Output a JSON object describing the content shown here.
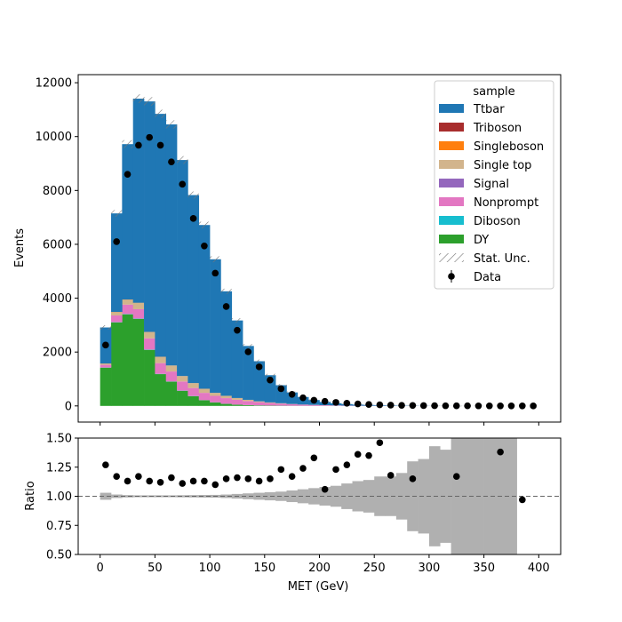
{
  "chart_data": [
    {
      "type": "bar",
      "panel": "main",
      "stacked": true,
      "xlabel": "",
      "ylabel": "Events",
      "xlim": [
        -20,
        420
      ],
      "ylim": [
        -600,
        12300
      ],
      "yticks": [
        0,
        2000,
        4000,
        6000,
        8000,
        10000,
        12000
      ],
      "bin_edges": [
        0,
        10,
        20,
        30,
        40,
        50,
        60,
        70,
        80,
        90,
        100,
        110,
        120,
        130,
        140,
        150,
        160,
        170,
        180,
        190,
        200,
        210,
        220,
        230,
        240,
        250,
        260,
        270,
        280,
        290,
        300,
        310,
        320,
        330,
        340,
        350,
        360,
        370,
        380,
        390,
        400
      ],
      "legend_title": "sample",
      "legend_position": "top-right",
      "series": [
        {
          "name": "DY",
          "color": "#2ca02c",
          "values": [
            1420,
            3100,
            3400,
            3230,
            2080,
            1180,
            900,
            560,
            360,
            210,
            130,
            75,
            45,
            28,
            18,
            11,
            7,
            5,
            3,
            2,
            1,
            1,
            0,
            0,
            0,
            0,
            0,
            0,
            0,
            0,
            0,
            0,
            0,
            0,
            0,
            0,
            0,
            0,
            0,
            0
          ]
        },
        {
          "name": "Diboson",
          "color": "#17becf",
          "values": [
            5,
            8,
            10,
            11,
            10,
            9,
            8,
            7,
            6,
            5,
            4,
            4,
            3,
            3,
            2,
            2,
            2,
            1,
            1,
            1,
            1,
            1,
            1,
            0,
            0,
            0,
            0,
            0,
            0,
            0,
            0,
            0,
            0,
            0,
            0,
            0,
            0,
            0,
            0,
            0
          ]
        },
        {
          "name": "Nonprompt",
          "color": "#e377c2",
          "values": [
            100,
            250,
            350,
            350,
            420,
            400,
            370,
            340,
            300,
            270,
            240,
            210,
            180,
            150,
            120,
            95,
            75,
            55,
            40,
            30,
            22,
            15,
            10,
            7,
            5,
            3,
            2,
            2,
            1,
            1,
            0,
            0,
            0,
            0,
            0,
            0,
            0,
            0,
            0,
            0
          ]
        },
        {
          "name": "Signal",
          "color": "#9467bd",
          "values": [
            0,
            0,
            0,
            0,
            0,
            0,
            0,
            0,
            0,
            0,
            0,
            0,
            0,
            0,
            0,
            0,
            0,
            0,
            0,
            0,
            0,
            0,
            0,
            0,
            0,
            0,
            0,
            0,
            0,
            0,
            0,
            0,
            0,
            0,
            0,
            0,
            0,
            0,
            0,
            0
          ]
        },
        {
          "name": "Single top",
          "color": "#d2b48c",
          "values": [
            40,
            120,
            180,
            230,
            230,
            230,
            220,
            200,
            180,
            150,
            110,
            85,
            65,
            45,
            30,
            22,
            15,
            10,
            7,
            5,
            3,
            2,
            1,
            1,
            0,
            0,
            0,
            0,
            0,
            0,
            0,
            0,
            0,
            0,
            0,
            0,
            0,
            0,
            0,
            0
          ]
        },
        {
          "name": "Singleboson",
          "color": "#ff7f0e",
          "values": [
            8,
            10,
            10,
            8,
            6,
            5,
            4,
            3,
            2,
            2,
            1,
            1,
            0,
            0,
            0,
            0,
            0,
            0,
            0,
            0,
            0,
            0,
            0,
            0,
            0,
            0,
            0,
            0,
            0,
            0,
            0,
            0,
            0,
            0,
            0,
            0,
            0,
            0,
            0,
            0
          ]
        },
        {
          "name": "Triboson",
          "color": "#a82d2d",
          "values": [
            0,
            0,
            0,
            0,
            0,
            0,
            0,
            0,
            0,
            0,
            0,
            0,
            0,
            0,
            0,
            0,
            0,
            0,
            0,
            0,
            0,
            0,
            0,
            0,
            0,
            0,
            0,
            0,
            0,
            0,
            0,
            0,
            0,
            0,
            0,
            0,
            0,
            0,
            0,
            0
          ]
        },
        {
          "name": "Ttbar",
          "color": "#1f77b4",
          "values": [
            1340,
            3660,
            5770,
            7580,
            8560,
            9020,
            8950,
            8020,
            6980,
            6080,
            4960,
            3880,
            2880,
            2000,
            1490,
            1010,
            670,
            430,
            280,
            180,
            120,
            80,
            55,
            40,
            30,
            22,
            15,
            10,
            7,
            5,
            3,
            2,
            1,
            1,
            1,
            0,
            0,
            0,
            0,
            0
          ]
        }
      ],
      "uncertainty_label": "Stat. Unc.",
      "data": {
        "name": "Data",
        "x": [
          5,
          15,
          25,
          35,
          45,
          55,
          65,
          75,
          85,
          95,
          105,
          115,
          125,
          135,
          145,
          155,
          165,
          175,
          185,
          195,
          205,
          215,
          225,
          235,
          245,
          255,
          265,
          275,
          285,
          295,
          305,
          315,
          325,
          335,
          345,
          355,
          365,
          375,
          385,
          395
        ],
        "y": [
          2260,
          6100,
          8600,
          9680,
          9970,
          9680,
          9060,
          8230,
          6960,
          5940,
          4930,
          3690,
          2810,
          2010,
          1450,
          960,
          640,
          430,
          300,
          210,
          170,
          130,
          100,
          75,
          55,
          40,
          30,
          22,
          18,
          12,
          8,
          6,
          4,
          3,
          2,
          2,
          1,
          1,
          1,
          0
        ]
      }
    },
    {
      "type": "bar",
      "panel": "ratio",
      "xlabel": "MET (GeV)",
      "ylabel": "Ratio",
      "xlim": [
        -20,
        420
      ],
      "ylim": [
        0.5,
        1.5
      ],
      "xticks": [
        0,
        50,
        100,
        150,
        200,
        250,
        300,
        350,
        400
      ],
      "yticks": [
        0.5,
        0.75,
        1.0,
        1.25,
        1.5
      ],
      "reference_line": 1.0,
      "band_halfwidth": [
        0.03,
        0.015,
        0.01,
        0.008,
        0.008,
        0.008,
        0.008,
        0.009,
        0.01,
        0.011,
        0.012,
        0.015,
        0.02,
        0.025,
        0.03,
        0.035,
        0.04,
        0.05,
        0.06,
        0.07,
        0.08,
        0.09,
        0.11,
        0.13,
        0.14,
        0.17,
        0.17,
        0.2,
        0.3,
        0.32,
        0.43,
        0.4,
        0.5,
        0.5,
        0.5,
        0.5,
        0.5,
        0.5,
        0,
        0
      ],
      "points": {
        "x": [
          5,
          15,
          25,
          35,
          45,
          55,
          65,
          75,
          85,
          95,
          105,
          115,
          125,
          135,
          145,
          155,
          165,
          175,
          185,
          195,
          205,
          215,
          225,
          235,
          245,
          255,
          265,
          285,
          325,
          365,
          385
        ],
        "y": [
          1.27,
          1.17,
          1.13,
          1.17,
          1.13,
          1.12,
          1.16,
          1.11,
          1.13,
          1.13,
          1.1,
          1.15,
          1.16,
          1.15,
          1.13,
          1.15,
          1.23,
          1.17,
          1.24,
          1.33,
          1.06,
          1.23,
          1.27,
          1.36,
          1.35,
          1.46,
          1.18,
          1.15,
          1.17,
          1.38,
          0.97
        ]
      }
    }
  ]
}
